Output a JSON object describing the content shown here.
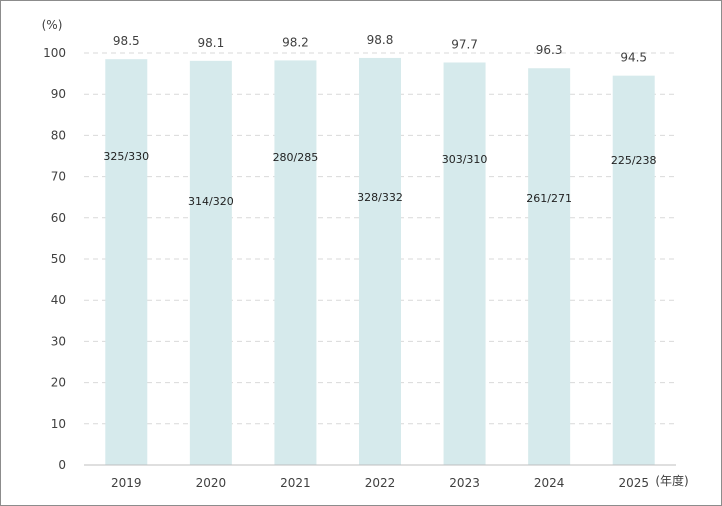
{
  "chart_data": {
    "type": "bar",
    "title": "",
    "xlabel": "(年度)",
    "ylabel": "(%)",
    "categories": [
      "2019",
      "2020",
      "2021",
      "2022",
      "2023",
      "2024",
      "2025"
    ],
    "values": [
      98.5,
      98.1,
      98.2,
      98.8,
      97.7,
      96.3,
      94.5
    ],
    "value_labels": [
      "98.5",
      "98.1",
      "98.2",
      "98.8",
      "97.7",
      "96.3",
      "94.5"
    ],
    "bar_annotations": [
      "325/330",
      "314/320",
      "280/285",
      "328/332",
      "303/310",
      "261/271",
      "225/238"
    ],
    "ylim": [
      0,
      100
    ],
    "yticks": [
      "0",
      "10",
      "20",
      "30",
      "40",
      "50",
      "60",
      "70",
      "80",
      "90",
      "100"
    ],
    "grid": true,
    "legend": "none",
    "colors": {
      "bar": "#d6eaec",
      "grid": "#d9d9d9",
      "axis": "#bfbfbf",
      "frame": "#8c8c8c"
    }
  }
}
